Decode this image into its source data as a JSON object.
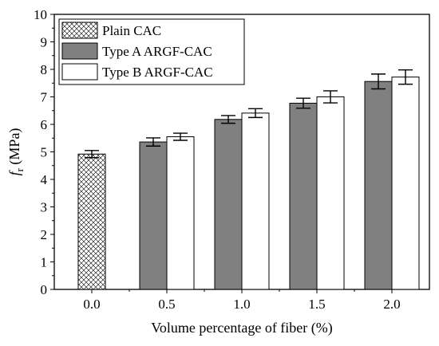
{
  "chart_data": {
    "type": "bar",
    "xlabel": "Volume percentage of fiber (%)",
    "ylabel_main": "f",
    "ylabel_sub": "r",
    "ylabel_unit": " (MPa)",
    "categories": [
      "0.0",
      "0.5",
      "1.0",
      "1.5",
      "2.0"
    ],
    "ylim": [
      0,
      10
    ],
    "yticks": [
      "0",
      "1",
      "2",
      "3",
      "4",
      "5",
      "6",
      "7",
      "8",
      "9",
      "10"
    ],
    "grid": false,
    "legend_position": "top-left",
    "series": [
      {
        "name": "Plain CAC",
        "fill": "hatch",
        "values": [
          4.92,
          null,
          null,
          null,
          null
        ],
        "errors": [
          0.13,
          null,
          null,
          null,
          null
        ]
      },
      {
        "name": "Type A ARGF-CAC",
        "fill": "#808080",
        "values": [
          null,
          5.36,
          6.18,
          6.77,
          7.56
        ],
        "errors": [
          null,
          0.15,
          0.14,
          0.18,
          0.27
        ]
      },
      {
        "name": "Type B ARGF-CAC",
        "fill": "#ffffff",
        "values": [
          null,
          5.55,
          6.41,
          7.0,
          7.72
        ],
        "errors": [
          null,
          0.13,
          0.16,
          0.22,
          0.26
        ]
      }
    ]
  }
}
